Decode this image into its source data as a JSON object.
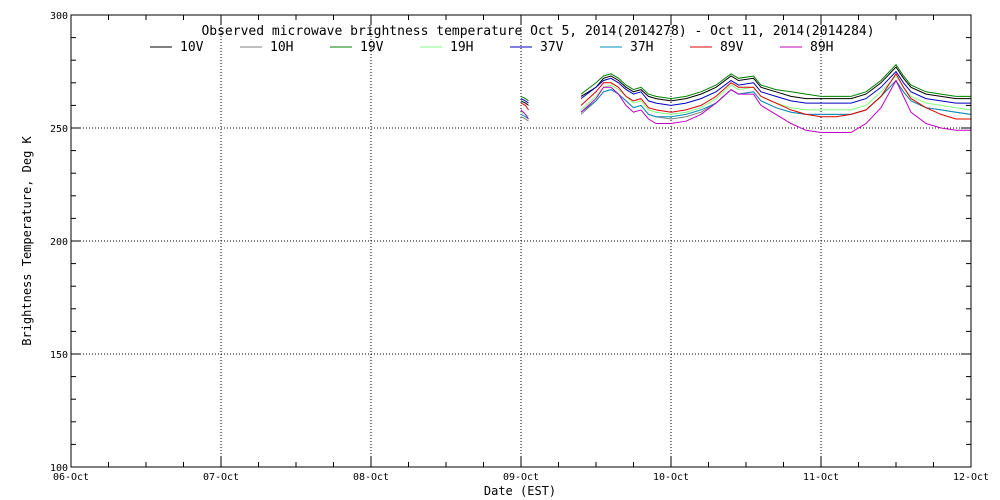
{
  "chart_data": {
    "type": "line",
    "title": "Observed microwave brightness temperature Oct  5, 2014(2014278) - Oct 11, 2014(2014284)",
    "xlabel": "Date (EST)",
    "ylabel": "Brightness Temperature, Deg K",
    "xlim": [
      0,
      6
    ],
    "ylim": [
      100,
      300
    ],
    "x_tick_labels": [
      "06-Oct",
      "07-Oct",
      "08-Oct",
      "09-Oct",
      "10-Oct",
      "11-Oct",
      "12-Oct"
    ],
    "y_ticks": [
      100,
      150,
      200,
      250,
      300
    ],
    "grid": true,
    "legend_position": "top",
    "x_unit_note": "x values are days after 06-Oct 00:00 EST",
    "series": [
      {
        "name": "10V",
        "color": "#000000",
        "points": [
          [
            3.0,
            262
          ],
          [
            3.03,
            261
          ],
          [
            3.05,
            260
          ],
          [
            null,
            null
          ],
          [
            3.4,
            264
          ],
          [
            3.5,
            268
          ],
          [
            3.55,
            272
          ],
          [
            3.6,
            273
          ],
          [
            3.65,
            271
          ],
          [
            3.7,
            268
          ],
          [
            3.75,
            266
          ],
          [
            3.8,
            267
          ],
          [
            3.85,
            264
          ],
          [
            3.9,
            263
          ],
          [
            4.0,
            262
          ],
          [
            4.1,
            263
          ],
          [
            4.2,
            265
          ],
          [
            4.3,
            268
          ],
          [
            4.4,
            273
          ],
          [
            4.45,
            271
          ],
          [
            4.55,
            272
          ],
          [
            4.6,
            268
          ],
          [
            4.7,
            266
          ],
          [
            4.8,
            264
          ],
          [
            4.9,
            263
          ],
          [
            5.0,
            263
          ],
          [
            5.1,
            263
          ],
          [
            5.2,
            263
          ],
          [
            5.3,
            265
          ],
          [
            5.4,
            270
          ],
          [
            5.5,
            277
          ],
          [
            5.55,
            272
          ],
          [
            5.6,
            268
          ],
          [
            5.7,
            265
          ],
          [
            5.8,
            264
          ],
          [
            5.9,
            263
          ],
          [
            6.0,
            263
          ]
        ]
      },
      {
        "name": "10H",
        "color": "#7f7f7f",
        "points": [
          [
            3.0,
            255
          ],
          [
            3.03,
            254
          ],
          [
            3.05,
            253
          ],
          [
            null,
            null
          ],
          [
            3.4,
            256
          ],
          [
            3.5,
            262
          ],
          [
            3.55,
            266
          ],
          [
            3.6,
            267
          ],
          [
            3.65,
            265
          ],
          [
            3.7,
            262
          ],
          [
            3.75,
            259
          ],
          [
            3.8,
            260
          ],
          [
            3.85,
            256
          ],
          [
            3.9,
            255
          ],
          [
            4.0,
            254
          ],
          [
            4.1,
            255
          ],
          [
            4.2,
            257
          ],
          [
            4.3,
            261
          ],
          [
            4.4,
            267
          ],
          [
            4.45,
            265
          ],
          [
            4.55,
            266
          ],
          [
            4.6,
            262
          ],
          [
            4.7,
            259
          ],
          [
            4.8,
            257
          ],
          [
            4.9,
            256
          ],
          [
            5.0,
            256
          ],
          [
            5.1,
            256
          ],
          [
            5.2,
            256
          ],
          [
            5.3,
            258
          ],
          [
            5.4,
            264
          ],
          [
            5.5,
            271
          ],
          [
            5.55,
            266
          ],
          [
            5.6,
            262
          ],
          [
            5.7,
            259
          ],
          [
            5.8,
            258
          ],
          [
            5.9,
            257
          ],
          [
            6.0,
            256
          ]
        ]
      },
      {
        "name": "19V",
        "color": "#008000",
        "points": [
          [
            3.0,
            264
          ],
          [
            3.03,
            263
          ],
          [
            3.05,
            262
          ],
          [
            null,
            null
          ],
          [
            3.4,
            265
          ],
          [
            3.5,
            270
          ],
          [
            3.55,
            273
          ],
          [
            3.6,
            274
          ],
          [
            3.65,
            272
          ],
          [
            3.7,
            269
          ],
          [
            3.75,
            267
          ],
          [
            3.8,
            268
          ],
          [
            3.85,
            265
          ],
          [
            3.9,
            264
          ],
          [
            4.0,
            263
          ],
          [
            4.1,
            264
          ],
          [
            4.2,
            266
          ],
          [
            4.3,
            269
          ],
          [
            4.4,
            274
          ],
          [
            4.45,
            272
          ],
          [
            4.55,
            273
          ],
          [
            4.6,
            269
          ],
          [
            4.7,
            267
          ],
          [
            4.8,
            266
          ],
          [
            4.9,
            265
          ],
          [
            5.0,
            264
          ],
          [
            5.1,
            264
          ],
          [
            5.2,
            264
          ],
          [
            5.3,
            266
          ],
          [
            5.4,
            271
          ],
          [
            5.5,
            278
          ],
          [
            5.55,
            273
          ],
          [
            5.6,
            269
          ],
          [
            5.7,
            266
          ],
          [
            5.8,
            265
          ],
          [
            5.9,
            264
          ],
          [
            6.0,
            264
          ]
        ]
      },
      {
        "name": "19H",
        "color": "#7fff7f",
        "points": [
          [
            3.0,
            257
          ],
          [
            3.03,
            256
          ],
          [
            3.05,
            255
          ],
          [
            null,
            null
          ],
          [
            3.4,
            258
          ],
          [
            3.5,
            264
          ],
          [
            3.55,
            268
          ],
          [
            3.6,
            269
          ],
          [
            3.65,
            267
          ],
          [
            3.7,
            264
          ],
          [
            3.75,
            261
          ],
          [
            3.8,
            262
          ],
          [
            3.85,
            258
          ],
          [
            3.9,
            257
          ],
          [
            4.0,
            256
          ],
          [
            4.1,
            257
          ],
          [
            4.2,
            259
          ],
          [
            4.3,
            263
          ],
          [
            4.4,
            269
          ],
          [
            4.45,
            267
          ],
          [
            4.55,
            268
          ],
          [
            4.6,
            264
          ],
          [
            4.7,
            261
          ],
          [
            4.8,
            259
          ],
          [
            4.9,
            258
          ],
          [
            5.0,
            258
          ],
          [
            5.1,
            258
          ],
          [
            5.2,
            258
          ],
          [
            5.3,
            260
          ],
          [
            5.4,
            266
          ],
          [
            5.5,
            273
          ],
          [
            5.55,
            268
          ],
          [
            5.6,
            264
          ],
          [
            5.7,
            261
          ],
          [
            5.8,
            260
          ],
          [
            5.9,
            259
          ],
          [
            6.0,
            258
          ]
        ]
      },
      {
        "name": "37V",
        "color": "#0000c0",
        "points": [
          [
            3.0,
            263
          ],
          [
            3.03,
            262
          ],
          [
            3.05,
            261
          ],
          [
            null,
            null
          ],
          [
            3.4,
            263
          ],
          [
            3.5,
            268
          ],
          [
            3.55,
            271
          ],
          [
            3.6,
            272
          ],
          [
            3.65,
            270
          ],
          [
            3.7,
            267
          ],
          [
            3.75,
            265
          ],
          [
            3.8,
            266
          ],
          [
            3.85,
            262
          ],
          [
            3.9,
            261
          ],
          [
            4.0,
            260
          ],
          [
            4.1,
            261
          ],
          [
            4.2,
            263
          ],
          [
            4.3,
            266
          ],
          [
            4.4,
            271
          ],
          [
            4.45,
            269
          ],
          [
            4.55,
            270
          ],
          [
            4.6,
            266
          ],
          [
            4.7,
            264
          ],
          [
            4.8,
            262
          ],
          [
            4.9,
            261
          ],
          [
            5.0,
            261
          ],
          [
            5.1,
            261
          ],
          [
            5.2,
            261
          ],
          [
            5.3,
            263
          ],
          [
            5.4,
            268
          ],
          [
            5.5,
            275
          ],
          [
            5.55,
            270
          ],
          [
            5.6,
            266
          ],
          [
            5.7,
            263
          ],
          [
            5.8,
            262
          ],
          [
            5.9,
            261
          ],
          [
            6.0,
            261
          ]
        ]
      },
      {
        "name": "37H",
        "color": "#0090c0",
        "points": [
          [
            3.0,
            256
          ],
          [
            3.03,
            255
          ],
          [
            3.05,
            254
          ],
          [
            null,
            null
          ],
          [
            3.4,
            257
          ],
          [
            3.5,
            262
          ],
          [
            3.55,
            266
          ],
          [
            3.6,
            267
          ],
          [
            3.65,
            265
          ],
          [
            3.7,
            262
          ],
          [
            3.75,
            259
          ],
          [
            3.8,
            260
          ],
          [
            3.85,
            256
          ],
          [
            3.9,
            255
          ],
          [
            4.0,
            255
          ],
          [
            4.1,
            256
          ],
          [
            4.2,
            258
          ],
          [
            4.3,
            261
          ],
          [
            4.4,
            267
          ],
          [
            4.45,
            265
          ],
          [
            4.55,
            266
          ],
          [
            4.6,
            262
          ],
          [
            4.7,
            259
          ],
          [
            4.8,
            257
          ],
          [
            4.9,
            256
          ],
          [
            5.0,
            256
          ],
          [
            5.1,
            256
          ],
          [
            5.2,
            256
          ],
          [
            5.3,
            258
          ],
          [
            5.4,
            264
          ],
          [
            5.5,
            271
          ],
          [
            5.55,
            266
          ],
          [
            5.6,
            262
          ],
          [
            5.7,
            259
          ],
          [
            5.8,
            258
          ],
          [
            5.9,
            257
          ],
          [
            6.0,
            256
          ]
        ]
      },
      {
        "name": "89V",
        "color": "#e00000",
        "points": [
          [
            3.0,
            261
          ],
          [
            3.03,
            260
          ],
          [
            3.05,
            258
          ],
          [
            null,
            null
          ],
          [
            3.4,
            260
          ],
          [
            3.5,
            266
          ],
          [
            3.55,
            270
          ],
          [
            3.6,
            270
          ],
          [
            3.65,
            268
          ],
          [
            3.7,
            264
          ],
          [
            3.75,
            262
          ],
          [
            3.8,
            263
          ],
          [
            3.85,
            259
          ],
          [
            3.9,
            258
          ],
          [
            4.0,
            257
          ],
          [
            4.1,
            258
          ],
          [
            4.2,
            260
          ],
          [
            4.3,
            264
          ],
          [
            4.4,
            270
          ],
          [
            4.45,
            268
          ],
          [
            4.55,
            268
          ],
          [
            4.6,
            264
          ],
          [
            4.7,
            261
          ],
          [
            4.8,
            258
          ],
          [
            4.9,
            256
          ],
          [
            5.0,
            255
          ],
          [
            5.1,
            255
          ],
          [
            5.2,
            256
          ],
          [
            5.3,
            258
          ],
          [
            5.4,
            264
          ],
          [
            5.5,
            274
          ],
          [
            5.55,
            268
          ],
          [
            5.6,
            263
          ],
          [
            5.7,
            259
          ],
          [
            5.8,
            256
          ],
          [
            5.9,
            254
          ],
          [
            6.0,
            254
          ]
        ]
      },
      {
        "name": "89H",
        "color": "#c000c0",
        "points": [
          [
            3.0,
            258
          ],
          [
            3.03,
            256
          ],
          [
            3.05,
            254
          ],
          [
            null,
            null
          ],
          [
            3.4,
            257
          ],
          [
            3.5,
            263
          ],
          [
            3.55,
            268
          ],
          [
            3.6,
            268
          ],
          [
            3.65,
            265
          ],
          [
            3.7,
            260
          ],
          [
            3.75,
            257
          ],
          [
            3.8,
            258
          ],
          [
            3.85,
            254
          ],
          [
            3.9,
            252
          ],
          [
            4.0,
            252
          ],
          [
            4.1,
            253
          ],
          [
            4.2,
            256
          ],
          [
            4.3,
            261
          ],
          [
            4.4,
            267
          ],
          [
            4.45,
            265
          ],
          [
            4.55,
            265
          ],
          [
            4.6,
            260
          ],
          [
            4.7,
            256
          ],
          [
            4.8,
            252
          ],
          [
            4.9,
            249
          ],
          [
            5.0,
            248
          ],
          [
            5.1,
            248
          ],
          [
            5.2,
            248
          ],
          [
            5.3,
            252
          ],
          [
            5.4,
            259
          ],
          [
            5.5,
            271
          ],
          [
            5.55,
            264
          ],
          [
            5.6,
            257
          ],
          [
            5.7,
            252
          ],
          [
            5.8,
            250
          ],
          [
            5.9,
            249
          ],
          [
            6.0,
            249
          ]
        ]
      }
    ]
  }
}
